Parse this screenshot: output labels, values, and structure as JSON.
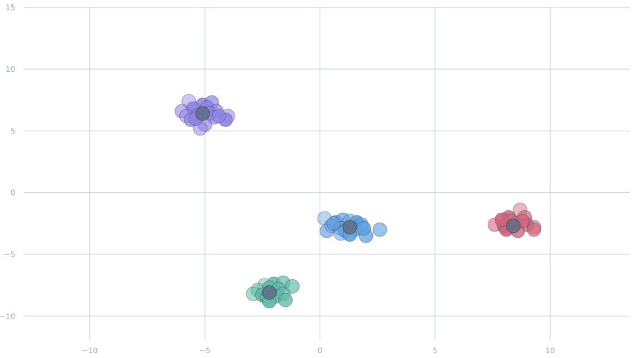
{
  "chart_data": {
    "type": "scatter",
    "title": "",
    "xlabel": "",
    "ylabel": "",
    "xlim": [
      -13.9,
      13.6
    ],
    "ylim": [
      -13.4,
      15.6
    ],
    "grid": true,
    "x_ticks": [
      -10,
      -5,
      0,
      5,
      10
    ],
    "y_ticks": [
      -10,
      -5,
      0,
      5,
      10,
      15
    ],
    "x_tick_labels": [
      "−10",
      "−5",
      "0",
      "5",
      "10"
    ],
    "y_tick_labels": [
      "−10",
      "−5",
      "0",
      "5",
      "10",
      "15"
    ],
    "clusters": [
      {
        "color": "#8e83e6",
        "centroid": [
          -5.1,
          6.4
        ],
        "points": [
          [
            -5.7,
            7.4
          ],
          [
            -5.1,
            7.1
          ],
          [
            -4.7,
            7.3
          ],
          [
            -6.0,
            6.6
          ],
          [
            -5.5,
            6.8
          ],
          [
            -4.9,
            6.9
          ],
          [
            -4.5,
            6.6
          ],
          [
            -5.8,
            6.2
          ],
          [
            -5.3,
            6.3
          ],
          [
            -4.8,
            6.4
          ],
          [
            -4.6,
            6.1
          ],
          [
            -4.0,
            6.2
          ],
          [
            -4.1,
            5.9
          ],
          [
            -5.6,
            5.9
          ],
          [
            -5.0,
            5.5
          ],
          [
            -5.2,
            5.2
          ],
          [
            -5.4,
            6.0
          ],
          [
            -4.4,
            6.2
          ]
        ]
      },
      {
        "color": "#61a2e3",
        "centroid": [
          1.3,
          -2.8
        ],
        "points": [
          [
            0.2,
            -2.1
          ],
          [
            0.7,
            -2.4
          ],
          [
            1.0,
            -2.2
          ],
          [
            1.3,
            -2.3
          ],
          [
            1.6,
            -2.4
          ],
          [
            1.8,
            -2.6
          ],
          [
            0.5,
            -2.7
          ],
          [
            0.9,
            -2.9
          ],
          [
            1.1,
            -3.1
          ],
          [
            1.5,
            -3.0
          ],
          [
            0.3,
            -3.1
          ],
          [
            0.9,
            -3.3
          ],
          [
            1.3,
            -3.4
          ],
          [
            2.0,
            -3.5
          ],
          [
            2.6,
            -3.0
          ],
          [
            0.6,
            -2.5
          ],
          [
            1.9,
            -2.9
          ]
        ]
      },
      {
        "color": "#d1627a",
        "centroid": [
          8.4,
          -2.7
        ],
        "points": [
          [
            8.7,
            -1.4
          ],
          [
            8.2,
            -2.0
          ],
          [
            8.9,
            -2.0
          ],
          [
            7.6,
            -2.6
          ],
          [
            8.0,
            -2.7
          ],
          [
            8.5,
            -2.5
          ],
          [
            9.0,
            -2.6
          ],
          [
            9.3,
            -2.8
          ],
          [
            8.1,
            -3.0
          ],
          [
            8.6,
            -3.1
          ],
          [
            9.3,
            -3.0
          ],
          [
            8.3,
            -2.3
          ],
          [
            7.9,
            -2.2
          ],
          [
            8.8,
            -2.3
          ]
        ]
      },
      {
        "color": "#5cbca5",
        "centroid": [
          -2.2,
          -8.1
        ],
        "points": [
          [
            -2.4,
            -7.5
          ],
          [
            -2.0,
            -7.4
          ],
          [
            -1.6,
            -7.3
          ],
          [
            -2.7,
            -7.9
          ],
          [
            -2.2,
            -7.7
          ],
          [
            -1.8,
            -7.8
          ],
          [
            -1.2,
            -7.6
          ],
          [
            -2.9,
            -8.2
          ],
          [
            -2.5,
            -8.3
          ],
          [
            -1.9,
            -8.4
          ],
          [
            -1.6,
            -8.2
          ],
          [
            -2.3,
            -8.5
          ],
          [
            -2.2,
            -8.8
          ],
          [
            -1.5,
            -8.7
          ]
        ]
      }
    ]
  }
}
